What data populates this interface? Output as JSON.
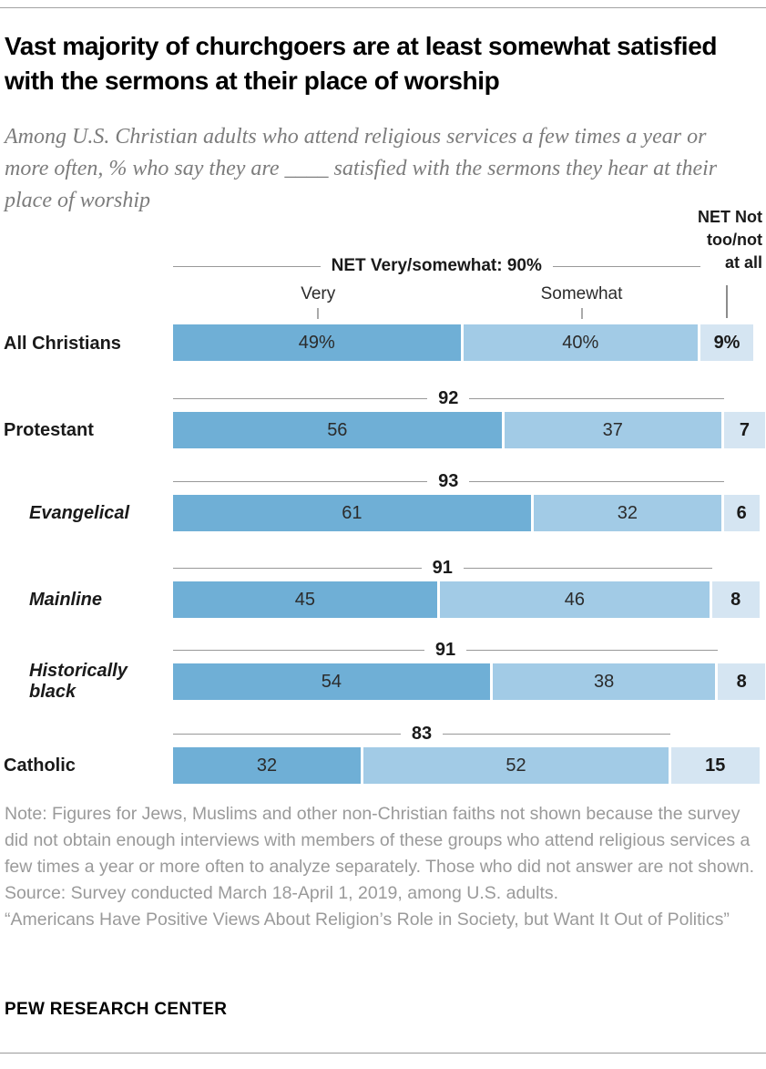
{
  "header": {
    "title": "Vast majority of churchgoers are at least somewhat satisfied with the sermons at their place of worship",
    "subtitle": "Among U.S. Christian adults who attend religious services a few times a year or more often, % who say they are ____ satisfied with the sermons they hear at their place of worship"
  },
  "chart": {
    "very_label": "Very",
    "somewhat_label": "Somewhat",
    "not_header_lines": [
      "NET Not",
      "too/not",
      "at all"
    ]
  },
  "rows": [
    {
      "label": "All Christians",
      "net_display": "NET Very/somewhat: 90%",
      "very_display": "49%",
      "somewhat_display": "40%",
      "not_display": "9%"
    },
    {
      "label": "Protestant",
      "net_display": "92",
      "very_display": "56",
      "somewhat_display": "37",
      "not_display": "7"
    },
    {
      "label": "Evangelical",
      "net_display": "93",
      "very_display": "61",
      "somewhat_display": "32",
      "not_display": "6"
    },
    {
      "label": "Mainline",
      "net_display": "91",
      "very_display": "45",
      "somewhat_display": "46",
      "not_display": "8"
    },
    {
      "label": "Historically black",
      "net_display": "91",
      "very_display": "54",
      "somewhat_display": "38",
      "not_display": "8"
    },
    {
      "label": "Catholic",
      "net_display": "83",
      "very_display": "32",
      "somewhat_display": "52",
      "not_display": "15"
    }
  ],
  "chart_data": {
    "type": "bar",
    "orientation": "horizontal",
    "stacked": true,
    "title": "Vast majority of churchgoers are at least somewhat satisfied with the sermons at their place of worship",
    "subtitle": "Among U.S. Christian adults who attend religious services a few times a year or more often, % who say they are ____ satisfied with the sermons they hear at their place of worship",
    "categories": [
      "All Christians",
      "Protestant",
      "Evangelical",
      "Mainline",
      "Historically black",
      "Catholic"
    ],
    "series": [
      {
        "name": "Very",
        "values": [
          49,
          56,
          61,
          45,
          54,
          32
        ]
      },
      {
        "name": "Somewhat",
        "values": [
          40,
          37,
          32,
          46,
          38,
          52
        ]
      },
      {
        "name": "NET Not too/not at all",
        "values": [
          9,
          7,
          6,
          8,
          8,
          15
        ]
      }
    ],
    "net_very_somewhat": [
      90,
      92,
      93,
      91,
      91,
      83
    ],
    "value_unit": "%",
    "xlim": [
      0,
      100
    ],
    "legend_position": "top",
    "grid": false
  },
  "footer": {
    "note": "Note: Figures for Jews, Muslims and other non-Christian faiths not shown because the survey did not obtain enough interviews with members of these groups who attend religious services a few times a year or more often to analyze separately. Those who did not answer are not shown.",
    "source": "Source: Survey conducted March 18-April 1, 2019, among U.S. adults.",
    "report": "“Americans Have Positive Views About Religion’s Role in Society, but Want It Out of Politics”",
    "brand": "PEW RESEARCH CENTER"
  },
  "colors": {
    "very": "#6FAFD6",
    "somewhat": "#A2CBE6",
    "not": "#D5E5F2",
    "net_rule": "#999999",
    "note_gray": "#9a9a9a",
    "subtitle_gray": "#7c7c7c"
  }
}
